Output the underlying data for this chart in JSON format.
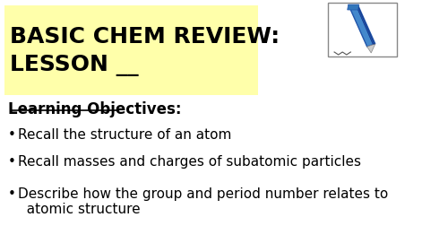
{
  "bg_color": "#ffffff",
  "title_line1": "BASIC CHEM REVIEW:",
  "title_line2": "LESSON __",
  "title_bg_color": "#ffffaa",
  "title_text_color": "#000000",
  "section_header": "Learning Objectives:",
  "bullet_points": [
    "Recall the structure of an atom",
    "Recall masses and charges of subatomic particles",
    "Describe how the group and period number relates to\n  atomic structure"
  ],
  "bullet_symbol": "•",
  "title_fontsize": 18,
  "header_fontsize": 12,
  "body_fontsize": 11
}
